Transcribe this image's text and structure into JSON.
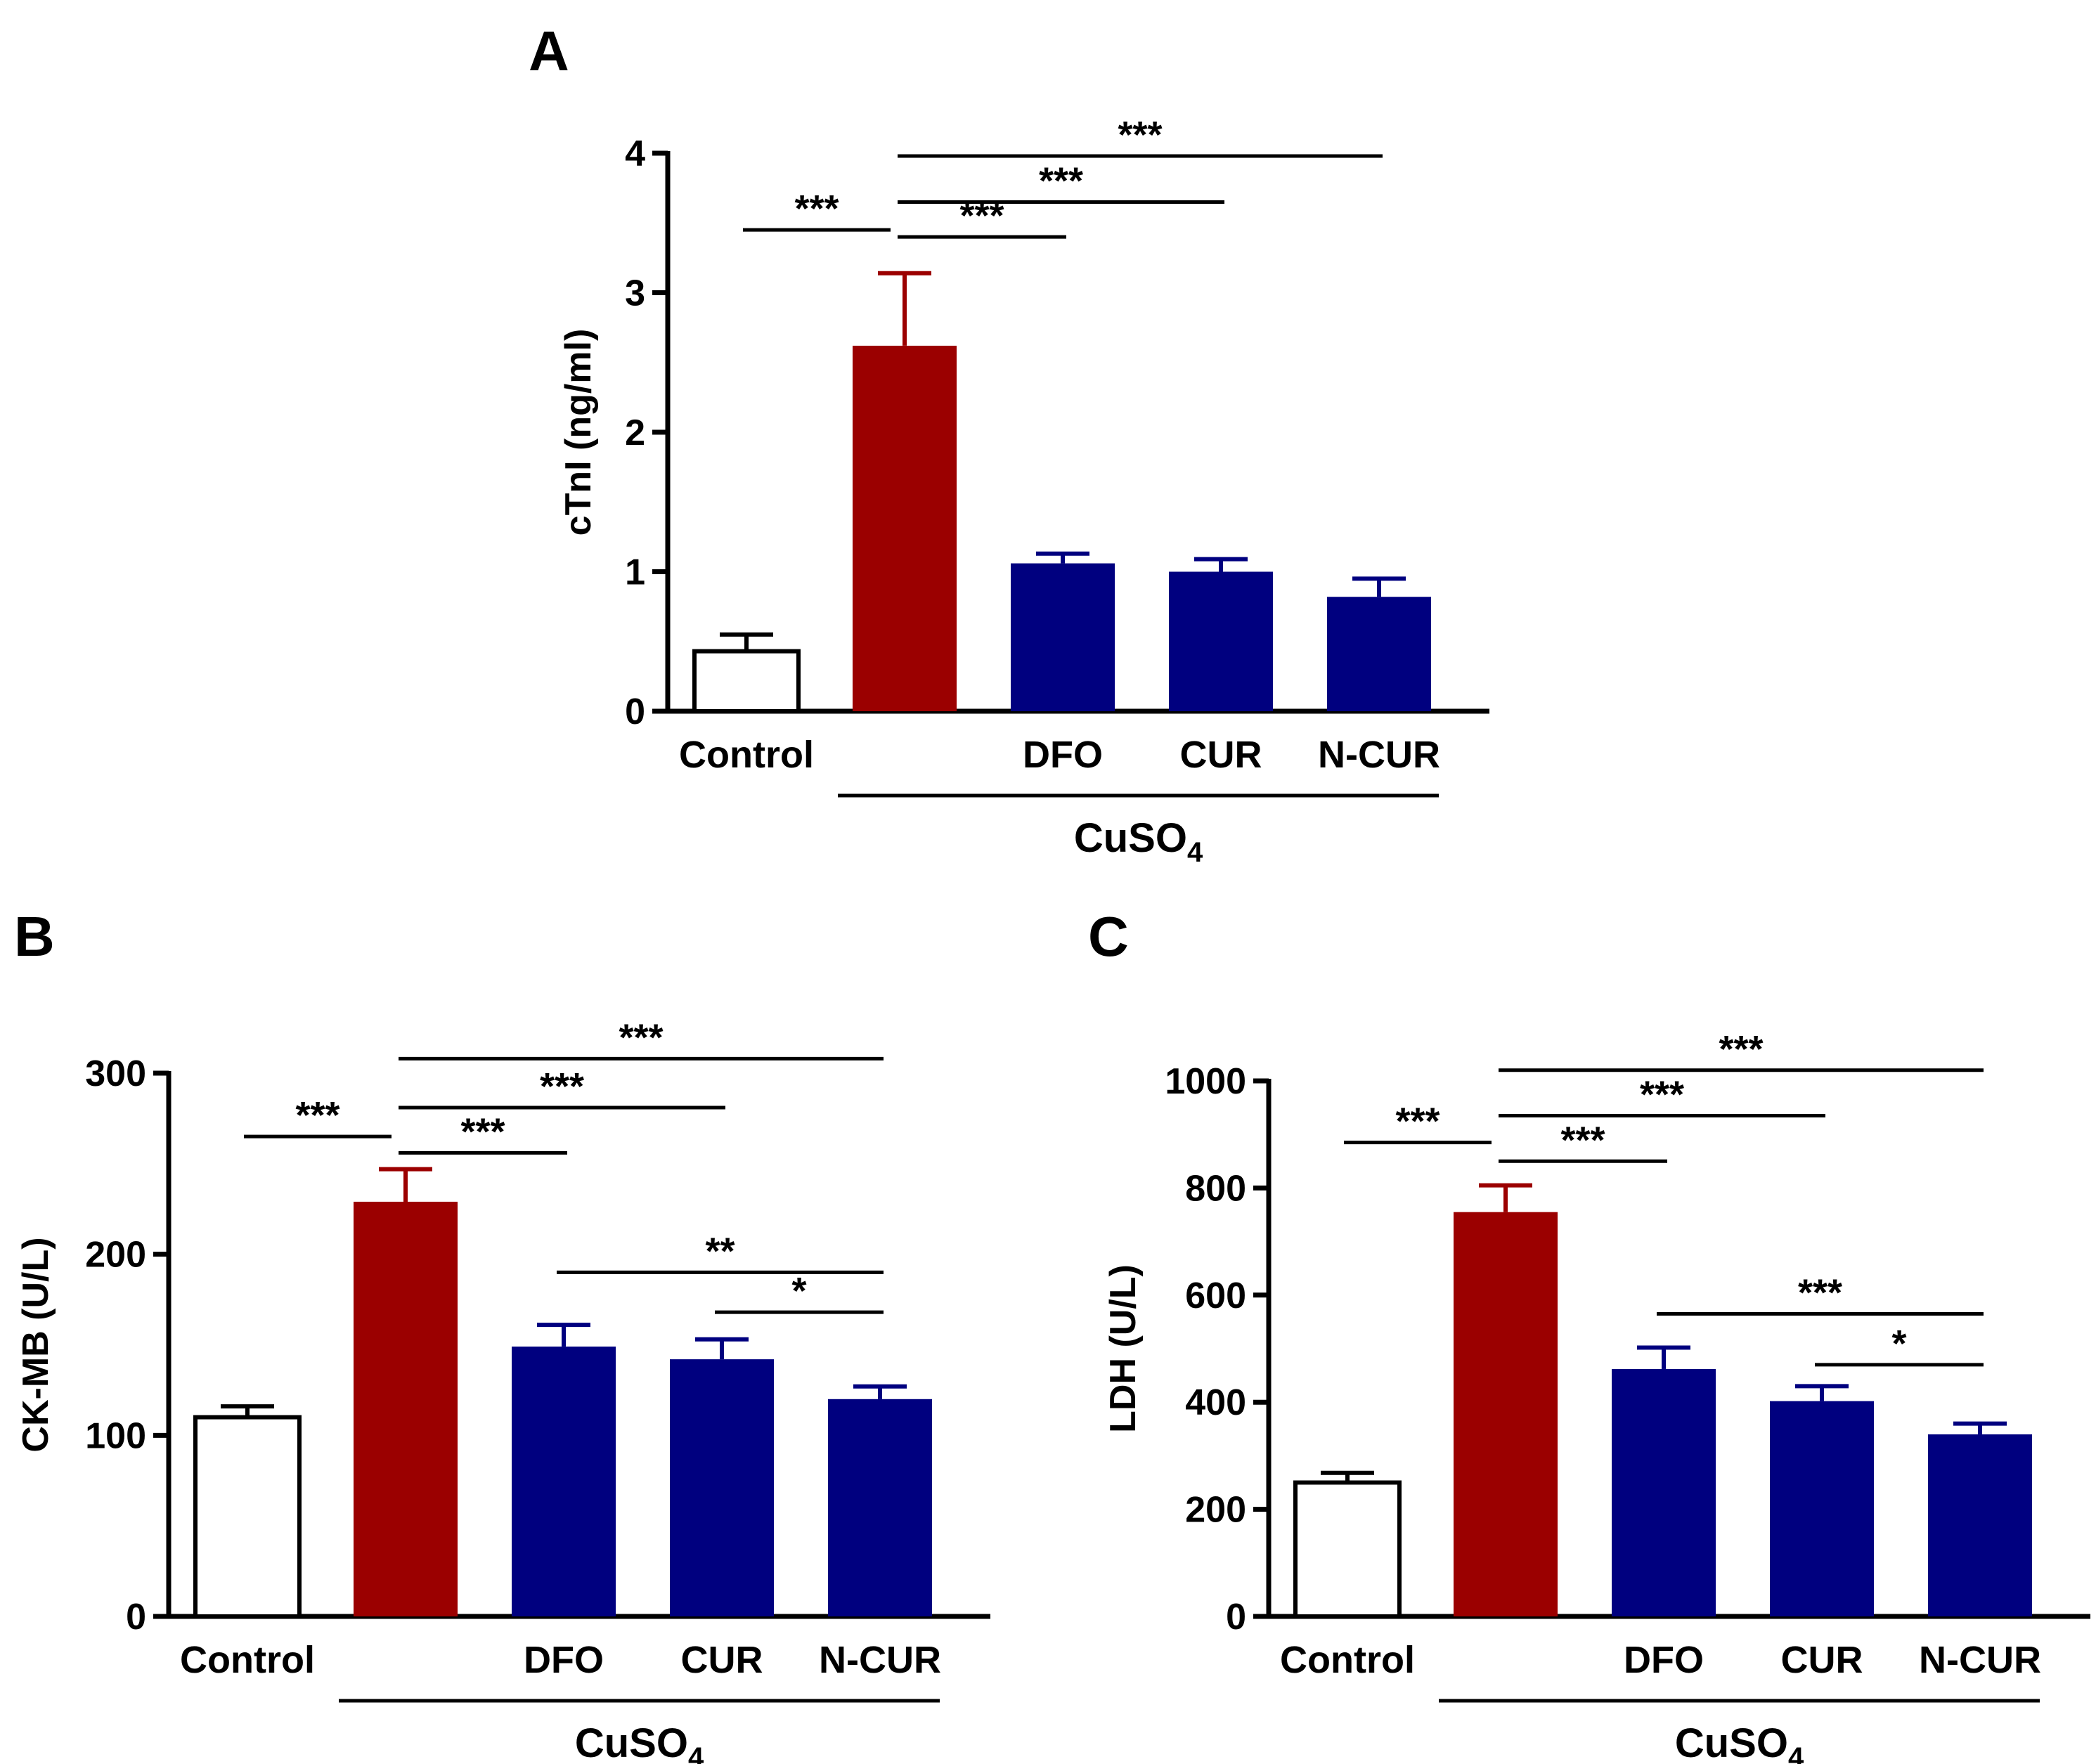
{
  "chart_data": [
    {
      "panel": "A",
      "type": "bar",
      "ylabel": "cTnI (ng/ml)",
      "ylim": [
        0,
        4
      ],
      "yticks": [
        "0",
        "1",
        "2",
        "3",
        "4"
      ],
      "categories": [
        "Control",
        "",
        "DFO",
        "CUR",
        "N-CUR"
      ],
      "values": [
        0.43,
        2.62,
        1.06,
        1.0,
        0.82
      ],
      "errors": [
        0.12,
        0.52,
        0.07,
        0.09,
        0.13
      ],
      "group": {
        "label": "CuSO",
        "subscript": "4",
        "from": 1,
        "to": 4
      },
      "significance": [
        {
          "from": 0,
          "to": 1,
          "label": "***",
          "y": 3.45
        },
        {
          "from": 1,
          "to": 2,
          "label": "***",
          "y": 3.4
        },
        {
          "from": 1,
          "to": 3,
          "label": "***",
          "y": 3.65
        },
        {
          "from": 1,
          "to": 4,
          "label": "***",
          "y": 3.98
        }
      ]
    },
    {
      "panel": "B",
      "type": "bar",
      "ylabel": "CK-MB (U/L)",
      "ylim": [
        0,
        300
      ],
      "yticks": [
        "0",
        "100",
        "200",
        "300"
      ],
      "categories": [
        "Control",
        "",
        "DFO",
        "CUR",
        "N-CUR"
      ],
      "values": [
        110,
        229,
        149,
        142,
        120
      ],
      "errors": [
        6,
        18,
        12,
        11,
        7
      ],
      "group": {
        "label": "CuSO",
        "subscript": "4",
        "from": 1,
        "to": 4
      },
      "significance": [
        {
          "from": 0,
          "to": 1,
          "label": "***",
          "y": 265
        },
        {
          "from": 1,
          "to": 2,
          "label": "***",
          "y": 256
        },
        {
          "from": 1,
          "to": 3,
          "label": "***",
          "y": 281
        },
        {
          "from": 1,
          "to": 4,
          "label": "***",
          "y": 308
        },
        {
          "from": 2,
          "to": 4,
          "label": "**",
          "y": 190
        },
        {
          "from": 3,
          "to": 4,
          "label": "*",
          "y": 168
        }
      ]
    },
    {
      "panel": "C",
      "type": "bar",
      "ylabel": "LDH (U/L)",
      "ylim": [
        0,
        1000
      ],
      "yticks": [
        "0",
        "200",
        "400",
        "600",
        "800",
        "1000"
      ],
      "categories": [
        "Control",
        "",
        "DFO",
        "CUR",
        "N-CUR"
      ],
      "values": [
        250,
        755,
        462,
        402,
        340
      ],
      "errors": [
        18,
        50,
        40,
        28,
        20
      ],
      "group": {
        "label": "CuSO",
        "subscript": "4",
        "from": 1,
        "to": 4
      },
      "significance": [
        {
          "from": 0,
          "to": 1,
          "label": "***",
          "y": 885
        },
        {
          "from": 1,
          "to": 2,
          "label": "***",
          "y": 850
        },
        {
          "from": 1,
          "to": 3,
          "label": "***",
          "y": 935
        },
        {
          "from": 1,
          "to": 4,
          "label": "***",
          "y": 1020
        },
        {
          "from": 2,
          "to": 4,
          "label": "***",
          "y": 565
        },
        {
          "from": 3,
          "to": 4,
          "label": "*",
          "y": 470
        }
      ]
    }
  ],
  "colors": {
    "control": "#ffffff",
    "cuso4": "#9b0000",
    "treatment": "#00007f"
  }
}
